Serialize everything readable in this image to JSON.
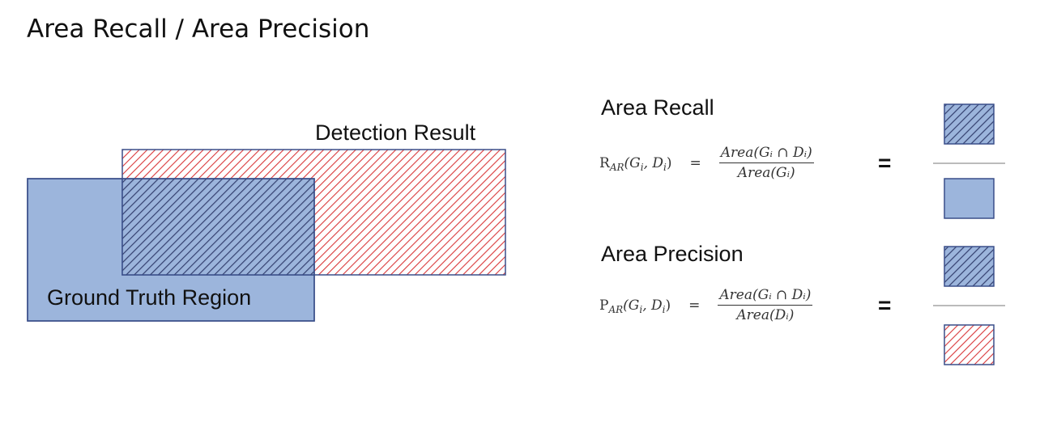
{
  "page": {
    "title": "Area Recall / Area Precision"
  },
  "diagram": {
    "detection_label": "Detection Result",
    "ground_truth_label": "Ground Truth Region",
    "colors": {
      "ground_truth_fill": "#9cb5dc",
      "region_border": "#3a4f8a",
      "detection_hatch": "#d9383a",
      "overlap_hatch": "#34406f"
    }
  },
  "recall": {
    "title": "Area Recall",
    "lhs_symbol": "R",
    "lhs_sub": "AR",
    "lhs_args": "(G",
    "lhs_args_sub1": "i",
    "lhs_args_mid": ", D",
    "lhs_args_sub2": "i",
    "lhs_args_end": ")",
    "eq": "=",
    "numerator": "Area(Gᵢ ∩ Dᵢ)",
    "denominator": "Area(Gᵢ)",
    "equals_sign": "="
  },
  "precision": {
    "title": "Area Precision",
    "lhs_symbol": "P",
    "lhs_sub": "AR",
    "lhs_args": "(G",
    "lhs_args_sub1": "i",
    "lhs_args_mid": ", D",
    "lhs_args_sub2": "i",
    "lhs_args_end": ")",
    "eq": "=",
    "numerator": "Area(Gᵢ ∩ Dᵢ)",
    "denominator": "Area(Dᵢ)",
    "equals_sign": "="
  }
}
